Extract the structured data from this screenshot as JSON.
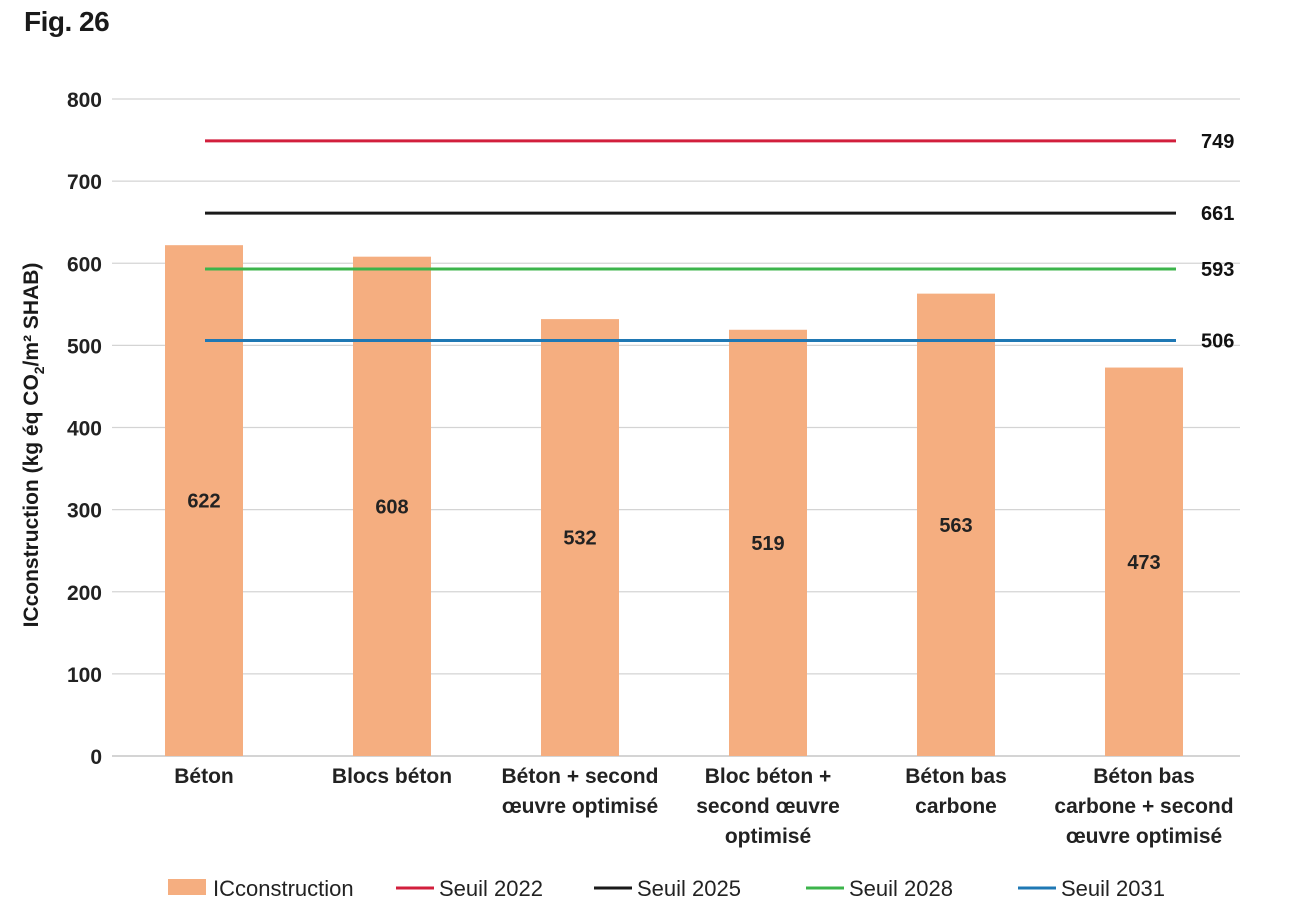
{
  "figure": {
    "label": "Fig. 26"
  },
  "chart_data": {
    "type": "bar",
    "ylabel_main": "ICconstruction (kg éq CO",
    "ylabel_sub": "2",
    "ylabel_tail": "/m² SHAB)",
    "ylim": [
      0,
      800
    ],
    "yticks": [
      "0",
      "100",
      "200",
      "300",
      "400",
      "500",
      "600",
      "700",
      "800"
    ],
    "grid": true,
    "legend_position": "bottom",
    "categories": [
      [
        "Béton"
      ],
      [
        "Blocs béton"
      ],
      [
        "Béton + second",
        "œuvre optimisé"
      ],
      [
        "Bloc béton +",
        "second œuvre",
        "optimisé"
      ],
      [
        "Béton bas",
        "carbone"
      ],
      [
        "Béton bas",
        "carbone + second",
        "œuvre optimisé"
      ]
    ],
    "bars": {
      "name": "ICconstruction",
      "color": "#f5ae80",
      "values": [
        622,
        608,
        532,
        519,
        563,
        473
      ],
      "labels": [
        "622",
        "608",
        "532",
        "519",
        "563",
        "473"
      ]
    },
    "thresholds": [
      {
        "name": "Seuil 2022",
        "value": 749,
        "label": "749",
        "color": "#d21f3c"
      },
      {
        "name": "Seuil 2025",
        "value": 661,
        "label": "661",
        "color": "#1a1a1a"
      },
      {
        "name": "Seuil 2028",
        "value": 593,
        "label": "593",
        "color": "#3cb44b"
      },
      {
        "name": "Seuil 2031",
        "value": 506,
        "label": "506",
        "color": "#1f78b4"
      }
    ]
  }
}
